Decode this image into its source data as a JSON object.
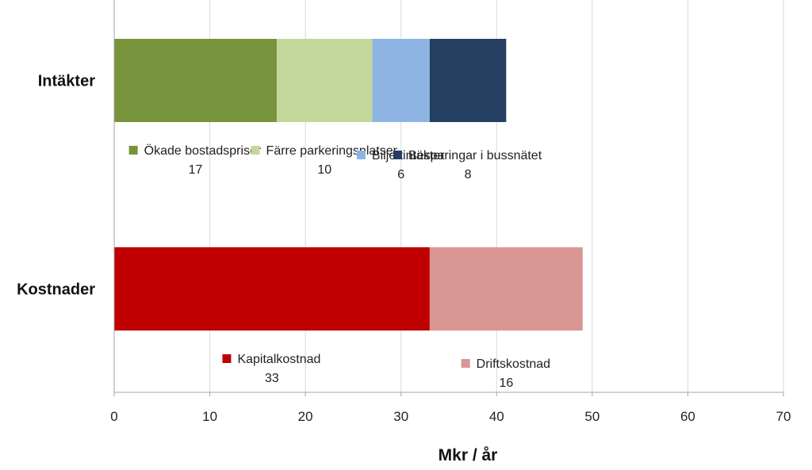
{
  "chart_data": {
    "type": "bar",
    "orientation": "horizontal",
    "stacked": true,
    "xlabel": "Mkr / år",
    "xlim": [
      0,
      70
    ],
    "xticks": [
      0,
      10,
      20,
      30,
      40,
      50,
      60,
      70
    ],
    "grid": true,
    "legend": "inline-below-bars",
    "categories": [
      "Intäkter",
      "Kostnader"
    ],
    "bars": [
      {
        "category": "Intäkter",
        "segments": [
          {
            "name": "Ökade bostadspriser",
            "value": 17,
            "color": "#77933C"
          },
          {
            "name": "Färre parkeringsplatser",
            "value": 10,
            "color": "#C4D79B"
          },
          {
            "name": "Biljettintäkter",
            "value": 6,
            "color": "#8DB4E2"
          },
          {
            "name": "Besparingar i bussnätet",
            "value": 8,
            "color": "#243F60"
          }
        ]
      },
      {
        "category": "Kostnader",
        "segments": [
          {
            "name": "Kapitalkostnad",
            "value": 33,
            "color": "#C00000"
          },
          {
            "name": "Driftskostnad",
            "value": 16,
            "color": "#D99694"
          }
        ]
      }
    ]
  }
}
